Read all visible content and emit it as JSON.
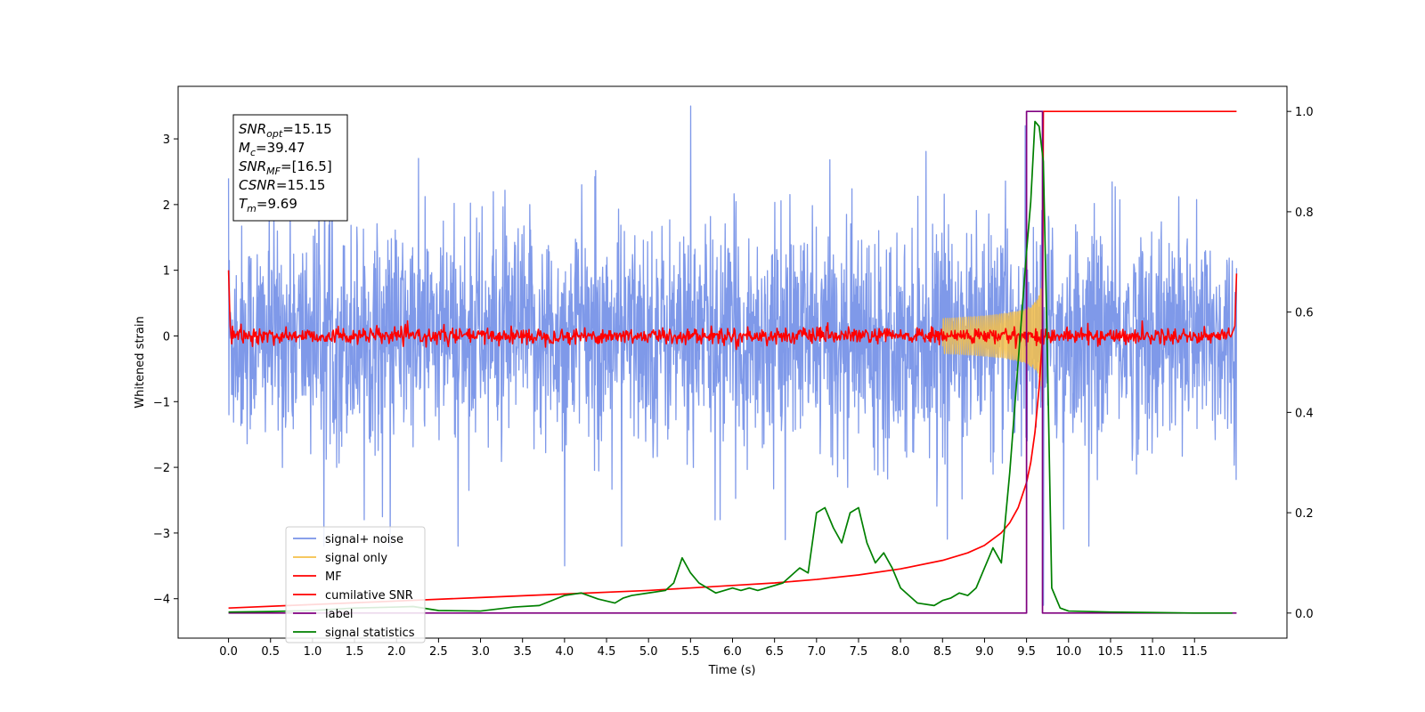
{
  "chart_data": {
    "type": "line",
    "xlabel": "Time (s)",
    "ylabel": "Whitened strain",
    "xlim": [
      -0.6,
      12.6
    ],
    "ylim_left": [
      -4.6,
      3.8
    ],
    "ylim_right": [
      -0.05,
      1.05
    ],
    "xticks": [
      "0.0",
      "0.5",
      "1.0",
      "1.5",
      "2.0",
      "2.5",
      "3.0",
      "3.5",
      "4.0",
      "4.5",
      "5.0",
      "5.5",
      "6.0",
      "6.5",
      "7.0",
      "7.5",
      "8.0",
      "8.5",
      "9.0",
      "9.5",
      "10.0",
      "10.5",
      "11.0",
      "11.5"
    ],
    "yticks_left": [
      "3",
      "2",
      "1",
      "0",
      "−1",
      "−2",
      "−3",
      "−4"
    ],
    "yticks_right": [
      "1.0",
      "0.8",
      "0.6",
      "0.4",
      "0.2",
      "0.0"
    ],
    "annotation": {
      "snr_opt": {
        "base": "SNR",
        "sub": "opt",
        "value": "=15.15"
      },
      "mc": {
        "base": "M",
        "sub": "c",
        "value": "=39.47"
      },
      "snr_mf": {
        "base": "SNR",
        "sub": "MF",
        "value": "=[16.5]"
      },
      "csnr": {
        "base": "CSNR",
        "sub": "",
        "value": "=15.15"
      },
      "tm": {
        "base": "T",
        "sub": "m",
        "value": "=9.69"
      }
    },
    "legend_position": "lower-left",
    "series": [
      {
        "name": "signal+ noise",
        "color": "#7893e8",
        "axis": "left",
        "x_range": [
          0.0,
          12.0
        ],
        "amplitude_typical": 1.1,
        "peaks": [
          [
            5.5,
            3.5
          ],
          [
            4.0,
            -3.5
          ],
          [
            9.7,
            -4.1
          ]
        ]
      },
      {
        "name": "signal only",
        "color": "#f5c04a",
        "axis": "left",
        "x_range": [
          8.5,
          9.7
        ],
        "peak_time": 9.69,
        "peak_amplitude": 2.4
      },
      {
        "name": "MF",
        "color": "#ff0000",
        "axis": "left",
        "x_range": [
          0.0,
          12.0
        ],
        "level": 0.0,
        "noise": 0.06,
        "edges": [
          [
            0.0,
            1.0
          ],
          [
            12.0,
            0.95
          ]
        ]
      },
      {
        "name": "cumilative SNR",
        "color": "#ff0000",
        "axis": "right",
        "x": [
          0.0,
          1.0,
          2.0,
          3.0,
          4.0,
          5.0,
          6.0,
          6.5,
          7.0,
          7.5,
          8.0,
          8.5,
          8.8,
          9.0,
          9.2,
          9.3,
          9.4,
          9.5,
          9.55,
          9.6,
          9.65,
          9.69,
          9.7,
          12.0
        ],
        "values": [
          0.01,
          0.017,
          0.024,
          0.031,
          0.038,
          0.045,
          0.055,
          0.06,
          0.067,
          0.076,
          0.088,
          0.105,
          0.12,
          0.135,
          0.16,
          0.18,
          0.21,
          0.26,
          0.3,
          0.36,
          0.45,
          0.55,
          1.0,
          1.0
        ]
      },
      {
        "name": "label",
        "color": "#800080",
        "axis": "right",
        "x": [
          0.0,
          9.5,
          9.5,
          9.69,
          9.69,
          12.0
        ],
        "values": [
          0.0,
          0.0,
          1.0,
          1.0,
          0.0,
          0.0
        ]
      },
      {
        "name": "signal statistics",
        "color": "#008000",
        "axis": "right",
        "x": [
          0.0,
          0.5,
          1.0,
          1.5,
          2.0,
          2.2,
          2.5,
          3.0,
          3.4,
          3.7,
          4.0,
          4.2,
          4.4,
          4.6,
          4.7,
          4.8,
          5.0,
          5.2,
          5.3,
          5.4,
          5.5,
          5.6,
          5.8,
          6.0,
          6.1,
          6.2,
          6.3,
          6.4,
          6.6,
          6.8,
          6.9,
          7.0,
          7.1,
          7.2,
          7.3,
          7.4,
          7.5,
          7.6,
          7.7,
          7.8,
          7.9,
          8.0,
          8.2,
          8.4,
          8.5,
          8.6,
          8.7,
          8.8,
          8.9,
          9.0,
          9.1,
          9.2,
          9.3,
          9.4,
          9.5,
          9.55,
          9.6,
          9.65,
          9.7,
          9.75,
          9.8,
          9.9,
          10.0,
          10.5,
          11.0,
          11.5,
          11.95
        ],
        "values": [
          0.002,
          0.003,
          0.005,
          0.01,
          0.012,
          0.013,
          0.005,
          0.004,
          0.012,
          0.015,
          0.035,
          0.04,
          0.028,
          0.02,
          0.03,
          0.035,
          0.04,
          0.045,
          0.06,
          0.11,
          0.08,
          0.06,
          0.04,
          0.05,
          0.045,
          0.05,
          0.045,
          0.05,
          0.06,
          0.09,
          0.08,
          0.2,
          0.21,
          0.17,
          0.14,
          0.2,
          0.21,
          0.14,
          0.1,
          0.12,
          0.09,
          0.05,
          0.02,
          0.015,
          0.025,
          0.03,
          0.04,
          0.035,
          0.05,
          0.09,
          0.13,
          0.1,
          0.28,
          0.5,
          0.72,
          0.82,
          0.98,
          0.97,
          0.9,
          0.5,
          0.05,
          0.01,
          0.004,
          0.002,
          0.001,
          0.0,
          0.0
        ]
      }
    ]
  }
}
